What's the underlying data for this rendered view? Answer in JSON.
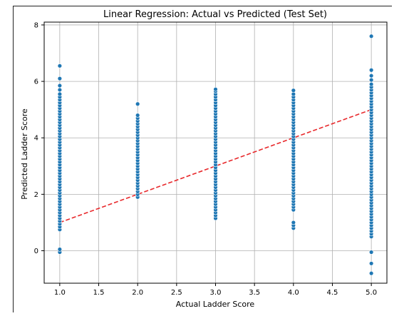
{
  "chart_data": {
    "type": "scatter",
    "title": "Linear Regression: Actual vs Predicted (Test Set)",
    "xlabel": "Actual Ladder Score",
    "ylabel": "Predicted Ladder Score",
    "xlim": [
      0.8,
      5.2
    ],
    "ylim": [
      -1.15,
      8.1
    ],
    "xticks": [
      1.0,
      1.5,
      2.0,
      2.5,
      3.0,
      3.5,
      4.0,
      4.5,
      5.0
    ],
    "xtick_labels": [
      "1.0",
      "1.5",
      "2.0",
      "2.5",
      "3.0",
      "3.5",
      "4.0",
      "4.5",
      "5.0"
    ],
    "yticks": [
      0,
      2,
      4,
      6,
      8
    ],
    "ytick_labels": [
      "0",
      "2",
      "4",
      "6",
      "8"
    ],
    "grid": true,
    "colors": {
      "points": "#1f77b4",
      "reference_line": "#e8282b"
    },
    "reference_line": {
      "style": "dashed",
      "x": [
        1.0,
        5.0
      ],
      "y": [
        1.0,
        5.0
      ]
    },
    "series": [
      {
        "x": 1.0,
        "y": [
          -0.05,
          0.05,
          0.75,
          0.85,
          0.95,
          1.05,
          1.15,
          1.25,
          1.35,
          1.45,
          1.55,
          1.65,
          1.75,
          1.85,
          1.95,
          2.05,
          2.15,
          2.25,
          2.35,
          2.45,
          2.55,
          2.65,
          2.75,
          2.85,
          2.95,
          3.05,
          3.15,
          3.25,
          3.35,
          3.45,
          3.55,
          3.65,
          3.75,
          3.85,
          3.95,
          4.05,
          4.15,
          4.25,
          4.35,
          4.45,
          4.55,
          4.65,
          4.75,
          4.85,
          4.95,
          5.05,
          5.15,
          5.25,
          5.35,
          5.45,
          5.55,
          5.7,
          5.85,
          6.1,
          6.55
        ]
      },
      {
        "x": 2.0,
        "y": [
          1.9,
          2.0,
          2.1,
          2.2,
          2.3,
          2.4,
          2.5,
          2.6,
          2.7,
          2.8,
          2.9,
          3.0,
          3.1,
          3.2,
          3.3,
          3.4,
          3.5,
          3.6,
          3.7,
          3.8,
          3.9,
          4.0,
          4.1,
          4.2,
          4.3,
          4.4,
          4.5,
          4.6,
          4.7,
          4.8,
          5.2
        ]
      },
      {
        "x": 3.0,
        "y": [
          1.15,
          1.25,
          1.35,
          1.45,
          1.55,
          1.65,
          1.75,
          1.85,
          1.95,
          2.05,
          2.15,
          2.25,
          2.35,
          2.45,
          2.55,
          2.65,
          2.75,
          2.85,
          2.95,
          3.05,
          3.15,
          3.25,
          3.35,
          3.45,
          3.55,
          3.65,
          3.75,
          3.85,
          3.95,
          4.05,
          4.15,
          4.25,
          4.35,
          4.45,
          4.55,
          4.65,
          4.75,
          4.85,
          4.95,
          5.05,
          5.15,
          5.25,
          5.35,
          5.45,
          5.55,
          5.65,
          5.72
        ]
      },
      {
        "x": 4.0,
        "y": [
          0.8,
          0.9,
          1.0,
          1.45,
          1.55,
          1.65,
          1.75,
          1.85,
          1.95,
          2.05,
          2.15,
          2.25,
          2.35,
          2.45,
          2.55,
          2.65,
          2.75,
          2.85,
          2.95,
          3.05,
          3.15,
          3.25,
          3.35,
          3.45,
          3.55,
          3.65,
          3.75,
          3.85,
          3.95,
          4.05,
          4.15,
          4.25,
          4.35,
          4.45,
          4.55,
          4.65,
          4.75,
          4.85,
          4.95,
          5.05,
          5.15,
          5.25,
          5.35,
          5.45,
          5.55,
          5.68
        ]
      },
      {
        "x": 5.0,
        "y": [
          -0.8,
          -0.45,
          -0.05,
          0.5,
          0.6,
          0.7,
          0.8,
          0.9,
          1.0,
          1.1,
          1.2,
          1.3,
          1.4,
          1.5,
          1.6,
          1.7,
          1.8,
          1.9,
          2.0,
          2.1,
          2.2,
          2.3,
          2.4,
          2.5,
          2.6,
          2.7,
          2.8,
          2.9,
          3.0,
          3.1,
          3.2,
          3.3,
          3.4,
          3.5,
          3.6,
          3.7,
          3.8,
          3.9,
          4.0,
          4.1,
          4.2,
          4.3,
          4.4,
          4.5,
          4.6,
          4.7,
          4.8,
          4.9,
          5.0,
          5.1,
          5.2,
          5.3,
          5.4,
          5.5,
          5.6,
          5.7,
          5.8,
          5.9,
          6.05,
          6.2,
          6.4,
          7.6
        ]
      }
    ]
  }
}
